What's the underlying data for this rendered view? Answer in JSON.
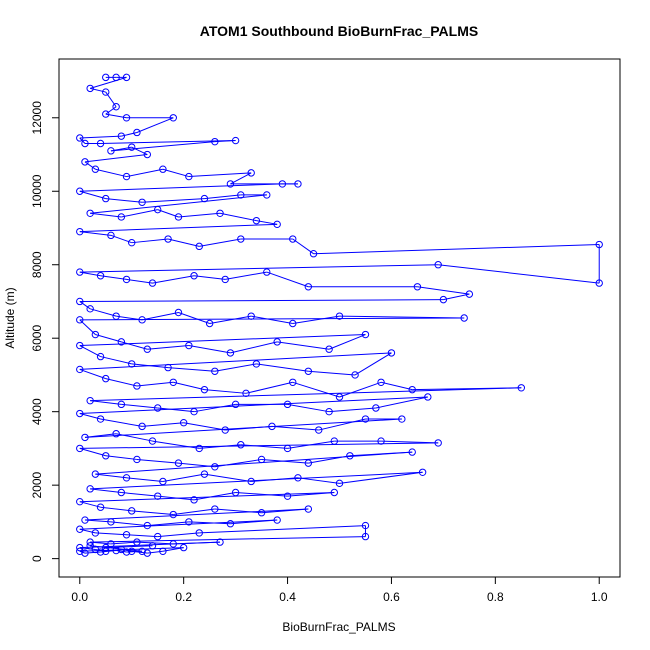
{
  "chart_data": {
    "type": "line",
    "title": "ATOM1 Southbound BioBurnFrac_PALMS",
    "xlabel": "BioBurnFrac_PALMS",
    "ylabel": "Altitude (m)",
    "xlim": [
      -0.04,
      1.04
    ],
    "ylim": [
      -500,
      13600
    ],
    "x_ticks": [
      0.0,
      0.2,
      0.4,
      0.6,
      0.8,
      1.0
    ],
    "x_tick_labels": [
      "0.0",
      "0.2",
      "0.4",
      "0.6",
      "0.8",
      "1.0"
    ],
    "y_ticks": [
      0,
      2000,
      4000,
      6000,
      8000,
      10000,
      12000
    ],
    "y_tick_labels": [
      "0",
      "2000",
      "4000",
      "6000",
      "8000",
      "10000",
      "12000"
    ],
    "grid": false,
    "legend": "none",
    "series_color": "#0000ff",
    "marker": "open-circle",
    "series": [
      {
        "points": [
          [
            0.05,
            13100
          ],
          [
            0.07,
            13100
          ],
          [
            0.09,
            13100
          ],
          [
            0.02,
            12800
          ],
          [
            0.05,
            12700
          ],
          [
            0.07,
            12300
          ],
          [
            0.05,
            12100
          ],
          [
            0.09,
            12000
          ],
          [
            0.18,
            12000
          ],
          [
            0.11,
            11600
          ],
          [
            0.08,
            11500
          ],
          [
            0.0,
            11450
          ],
          [
            0.01,
            11300
          ],
          [
            0.04,
            11300
          ],
          [
            0.3,
            11380
          ],
          [
            0.26,
            11350
          ],
          [
            0.06,
            11100
          ],
          [
            0.1,
            11200
          ],
          [
            0.13,
            11000
          ],
          [
            0.01,
            10800
          ],
          [
            0.03,
            10600
          ],
          [
            0.09,
            10400
          ],
          [
            0.16,
            10600
          ],
          [
            0.21,
            10400
          ],
          [
            0.33,
            10500
          ],
          [
            0.29,
            10200
          ],
          [
            0.42,
            10200
          ],
          [
            0.39,
            10200
          ],
          [
            0.0,
            10000
          ],
          [
            0.05,
            9800
          ],
          [
            0.12,
            9700
          ],
          [
            0.24,
            9800
          ],
          [
            0.31,
            9900
          ],
          [
            0.36,
            9900
          ],
          [
            0.02,
            9400
          ],
          [
            0.08,
            9300
          ],
          [
            0.15,
            9500
          ],
          [
            0.19,
            9300
          ],
          [
            0.27,
            9400
          ],
          [
            0.34,
            9200
          ],
          [
            0.38,
            9100
          ],
          [
            0.0,
            8900
          ],
          [
            0.06,
            8800
          ],
          [
            0.1,
            8600
          ],
          [
            0.17,
            8700
          ],
          [
            0.23,
            8500
          ],
          [
            0.31,
            8700
          ],
          [
            0.41,
            8700
          ],
          [
            0.45,
            8300
          ],
          [
            1.0,
            8550
          ],
          [
            1.0,
            7500
          ],
          [
            0.69,
            8000
          ],
          [
            0.0,
            7800
          ],
          [
            0.04,
            7700
          ],
          [
            0.09,
            7600
          ],
          [
            0.14,
            7500
          ],
          [
            0.22,
            7700
          ],
          [
            0.28,
            7600
          ],
          [
            0.36,
            7800
          ],
          [
            0.44,
            7400
          ],
          [
            0.65,
            7400
          ],
          [
            0.75,
            7200
          ],
          [
            0.7,
            7050
          ],
          [
            0.0,
            7000
          ],
          [
            0.02,
            6800
          ],
          [
            0.07,
            6600
          ],
          [
            0.12,
            6500
          ],
          [
            0.19,
            6700
          ],
          [
            0.25,
            6400
          ],
          [
            0.33,
            6600
          ],
          [
            0.41,
            6400
          ],
          [
            0.5,
            6600
          ],
          [
            0.74,
            6550
          ],
          [
            0.0,
            6500
          ],
          [
            0.03,
            6100
          ],
          [
            0.08,
            5900
          ],
          [
            0.13,
            5700
          ],
          [
            0.21,
            5800
          ],
          [
            0.29,
            5600
          ],
          [
            0.38,
            5900
          ],
          [
            0.48,
            5700
          ],
          [
            0.55,
            6100
          ],
          [
            0.0,
            5800
          ],
          [
            0.04,
            5500
          ],
          [
            0.1,
            5300
          ],
          [
            0.17,
            5200
          ],
          [
            0.26,
            5100
          ],
          [
            0.34,
            5300
          ],
          [
            0.44,
            5100
          ],
          [
            0.53,
            5000
          ],
          [
            0.6,
            5600
          ],
          [
            0.0,
            5150
          ],
          [
            0.05,
            4900
          ],
          [
            0.11,
            4700
          ],
          [
            0.18,
            4800
          ],
          [
            0.24,
            4600
          ],
          [
            0.32,
            4500
          ],
          [
            0.41,
            4800
          ],
          [
            0.5,
            4400
          ],
          [
            0.58,
            4800
          ],
          [
            0.64,
            4600
          ],
          [
            0.85,
            4650
          ],
          [
            0.02,
            4300
          ],
          [
            0.08,
            4200
          ],
          [
            0.15,
            4100
          ],
          [
            0.22,
            4000
          ],
          [
            0.3,
            4200
          ],
          [
            0.4,
            4200
          ],
          [
            0.48,
            4000
          ],
          [
            0.57,
            4100
          ],
          [
            0.67,
            4400
          ],
          [
            0.0,
            3950
          ],
          [
            0.04,
            3800
          ],
          [
            0.12,
            3600
          ],
          [
            0.2,
            3700
          ],
          [
            0.28,
            3500
          ],
          [
            0.37,
            3600
          ],
          [
            0.46,
            3500
          ],
          [
            0.55,
            3800
          ],
          [
            0.62,
            3800
          ],
          [
            0.01,
            3300
          ],
          [
            0.07,
            3400
          ],
          [
            0.14,
            3200
          ],
          [
            0.23,
            3000
          ],
          [
            0.31,
            3100
          ],
          [
            0.4,
            3000
          ],
          [
            0.49,
            3200
          ],
          [
            0.58,
            3200
          ],
          [
            0.69,
            3150
          ],
          [
            0.0,
            3000
          ],
          [
            0.05,
            2800
          ],
          [
            0.11,
            2700
          ],
          [
            0.19,
            2600
          ],
          [
            0.26,
            2500
          ],
          [
            0.35,
            2700
          ],
          [
            0.44,
            2600
          ],
          [
            0.52,
            2800
          ],
          [
            0.64,
            2900
          ],
          [
            0.03,
            2300
          ],
          [
            0.09,
            2200
          ],
          [
            0.16,
            2100
          ],
          [
            0.24,
            2300
          ],
          [
            0.33,
            2100
          ],
          [
            0.42,
            2200
          ],
          [
            0.5,
            2050
          ],
          [
            0.66,
            2350
          ],
          [
            0.02,
            1900
          ],
          [
            0.08,
            1800
          ],
          [
            0.15,
            1700
          ],
          [
            0.22,
            1600
          ],
          [
            0.3,
            1800
          ],
          [
            0.4,
            1700
          ],
          [
            0.49,
            1800
          ],
          [
            0.0,
            1550
          ],
          [
            0.04,
            1400
          ],
          [
            0.1,
            1300
          ],
          [
            0.18,
            1200
          ],
          [
            0.26,
            1350
          ],
          [
            0.35,
            1250
          ],
          [
            0.44,
            1350
          ],
          [
            0.01,
            1050
          ],
          [
            0.06,
            1000
          ],
          [
            0.13,
            900
          ],
          [
            0.21,
            1000
          ],
          [
            0.29,
            950
          ],
          [
            0.38,
            1050
          ],
          [
            0.0,
            800
          ],
          [
            0.03,
            700
          ],
          [
            0.09,
            650
          ],
          [
            0.15,
            600
          ],
          [
            0.23,
            700
          ],
          [
            0.55,
            900
          ],
          [
            0.55,
            600
          ],
          [
            0.02,
            450
          ],
          [
            0.06,
            400
          ],
          [
            0.11,
            450
          ],
          [
            0.18,
            400
          ],
          [
            0.27,
            450
          ],
          [
            0.0,
            300
          ],
          [
            0.03,
            250
          ],
          [
            0.05,
            200
          ],
          [
            0.08,
            250
          ],
          [
            0.1,
            200
          ],
          [
            0.13,
            150
          ],
          [
            0.16,
            200
          ],
          [
            0.2,
            300
          ],
          [
            0.0,
            200
          ],
          [
            0.01,
            150
          ],
          [
            0.04,
            180
          ],
          [
            0.07,
            220
          ],
          [
            0.09,
            180
          ],
          [
            0.12,
            200
          ],
          [
            0.02,
            350
          ],
          [
            0.05,
            300
          ],
          [
            0.14,
            350
          ]
        ]
      }
    ]
  }
}
